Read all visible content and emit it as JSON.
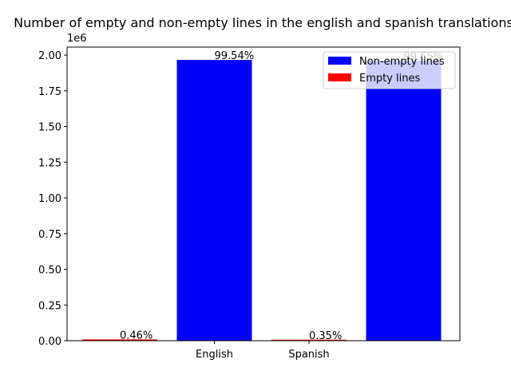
{
  "chart_data": {
    "type": "bar",
    "title": "Number of empty and non-empty lines in the english and spanish translations",
    "y_offset_label": "1e6",
    "categories": [
      null,
      "English",
      "Spanish",
      null
    ],
    "series": [
      {
        "name": "Non-empty lines",
        "color": "#0000ff",
        "values": [
          null,
          1966000,
          null,
          1960000
        ],
        "annotations": [
          null,
          "99.54%",
          null,
          "99.65%"
        ]
      },
      {
        "name": "Empty lines",
        "color": "#ff0000",
        "values": [
          9100,
          null,
          6900,
          null
        ],
        "annotations": [
          "0.46%",
          null,
          "0.35%",
          null
        ]
      }
    ],
    "ylim": [
      0,
      2056000
    ],
    "yticks": [
      {
        "value": 0,
        "label": "0.00"
      },
      {
        "value": 250000,
        "label": "0.25"
      },
      {
        "value": 500000,
        "label": "0.50"
      },
      {
        "value": 750000,
        "label": "0.75"
      },
      {
        "value": 1000000,
        "label": "1.00"
      },
      {
        "value": 1250000,
        "label": "1.25"
      },
      {
        "value": 1500000,
        "label": "1.50"
      },
      {
        "value": 1750000,
        "label": "1.75"
      },
      {
        "value": 2000000,
        "label": "2.00"
      }
    ],
    "legend": "upper right",
    "grid": false
  }
}
